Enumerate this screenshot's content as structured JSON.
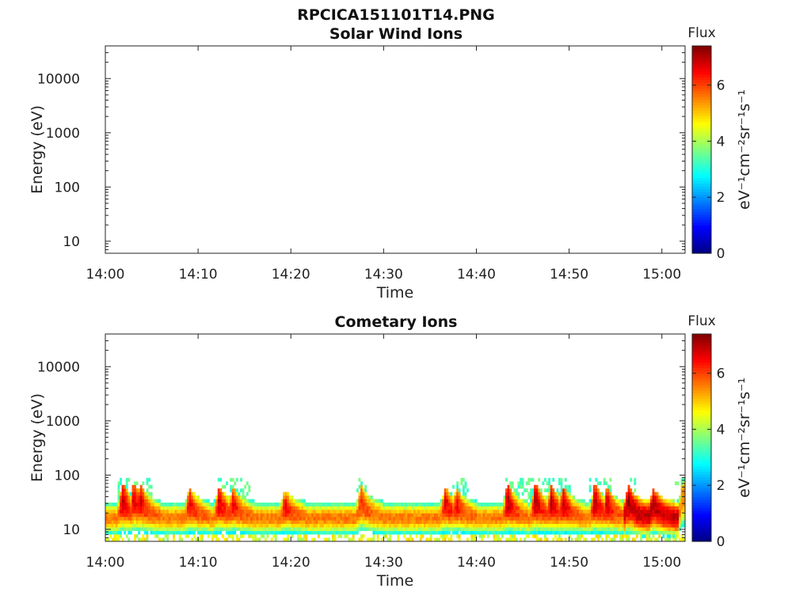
{
  "figure_title": "RPCICA151101T14.PNG",
  "chart_data": [
    {
      "type": "heatmap",
      "title": "Solar Wind Ions",
      "xlabel": "Time",
      "ylabel": "Energy (eV)",
      "x_ticks": [
        "14:00",
        "14:10",
        "14:20",
        "14:30",
        "14:40",
        "14:50",
        "15:00"
      ],
      "x_range_minutes": [
        0,
        62.5
      ],
      "y_scale": "log",
      "y_ticks": [
        "10",
        "100",
        "1000",
        "10000"
      ],
      "y_range": [
        6,
        40000
      ],
      "colorbar": {
        "title": "Flux",
        "label": "eV⁻¹cm⁻²sr⁻¹s⁻¹",
        "ticks": [
          "0",
          "2",
          "4",
          "6"
        ],
        "range": [
          0,
          7.4
        ],
        "colormap": "jet"
      },
      "cells": []
    },
    {
      "type": "heatmap",
      "title": "Cometary Ions",
      "xlabel": "Time",
      "ylabel": "Energy (eV)",
      "x_ticks": [
        "14:00",
        "14:10",
        "14:20",
        "14:30",
        "14:40",
        "14:50",
        "15:00"
      ],
      "x_range_minutes": [
        0,
        62.5
      ],
      "y_scale": "log",
      "y_ticks": [
        "10",
        "100",
        "1000",
        "10000"
      ],
      "y_range": [
        6,
        40000
      ],
      "colorbar": {
        "title": "Flux",
        "label": "eV⁻¹cm⁻²sr⁻¹s⁻¹",
        "ticks": [
          "0",
          "2",
          "4",
          "6"
        ],
        "range": [
          0,
          7.4
        ],
        "colormap": "jet"
      },
      "band": {
        "description_energy_eV": "main flux between ~8 and ~30 eV, peak near 15 eV",
        "baseline_peak_flux": 5.6,
        "peak_energy_eV": 15,
        "low_energy_eV": 6,
        "high_energy_eV": 30,
        "bursts": [
          {
            "t_min": 1.8,
            "peak_energy_eV": 40,
            "peak_flux": 6.9
          },
          {
            "t_min": 3.0,
            "peak_energy_eV": 42,
            "peak_flux": 6.8
          },
          {
            "t_min": 3.7,
            "peak_energy_eV": 38,
            "peak_flux": 6.7
          },
          {
            "t_min": 9.0,
            "peak_energy_eV": 32,
            "peak_flux": 6.6
          },
          {
            "t_min": 12.2,
            "peak_energy_eV": 35,
            "peak_flux": 6.8
          },
          {
            "t_min": 13.7,
            "peak_energy_eV": 32,
            "peak_flux": 6.6
          },
          {
            "t_min": 19.3,
            "peak_energy_eV": 28,
            "peak_flux": 6.5
          },
          {
            "t_min": 27.5,
            "peak_energy_eV": 35,
            "peak_flux": 6.2
          },
          {
            "t_min": 36.6,
            "peak_energy_eV": 33,
            "peak_flux": 6.7
          },
          {
            "t_min": 37.8,
            "peak_energy_eV": 30,
            "peak_flux": 6.5
          },
          {
            "t_min": 43.3,
            "peak_energy_eV": 38,
            "peak_flux": 7.0
          },
          {
            "t_min": 46.3,
            "peak_energy_eV": 40,
            "peak_flux": 7.1
          },
          {
            "t_min": 48.0,
            "peak_energy_eV": 35,
            "peak_flux": 7.0
          },
          {
            "t_min": 49.3,
            "peak_energy_eV": 33,
            "peak_flux": 6.9
          },
          {
            "t_min": 52.7,
            "peak_energy_eV": 38,
            "peak_flux": 7.0
          },
          {
            "t_min": 54.0,
            "peak_energy_eV": 32,
            "peak_flux": 6.9
          },
          {
            "t_min": 56.3,
            "peak_energy_eV": 35,
            "peak_flux": 7.2
          },
          {
            "t_min": 59.0,
            "peak_energy_eV": 30,
            "peak_flux": 7.0
          },
          {
            "t_min": 62.2,
            "peak_energy_eV": 50,
            "peak_flux": 5.5
          }
        ],
        "elevated_intervals": [
          {
            "start_min": 55.8,
            "end_min": 61.8,
            "flux": 6.9
          }
        ],
        "sparse_high_energy_intervals": [
          {
            "start_min": 1.2,
            "end_min": 5.0,
            "max_energy_eV": 80
          },
          {
            "start_min": 12.0,
            "end_min": 15.5,
            "max_energy_eV": 80
          },
          {
            "start_min": 27.0,
            "end_min": 28.0,
            "max_energy_eV": 80
          },
          {
            "start_min": 37.0,
            "end_min": 39.0,
            "max_energy_eV": 80
          },
          {
            "start_min": 43.0,
            "end_min": 50.0,
            "max_energy_eV": 80
          },
          {
            "start_min": 52.0,
            "end_min": 54.5,
            "max_energy_eV": 80
          },
          {
            "start_min": 56.0,
            "end_min": 57.0,
            "max_energy_eV": 80
          },
          {
            "start_min": 61.3,
            "end_min": 62.5,
            "max_energy_eV": 80
          }
        ]
      }
    }
  ]
}
